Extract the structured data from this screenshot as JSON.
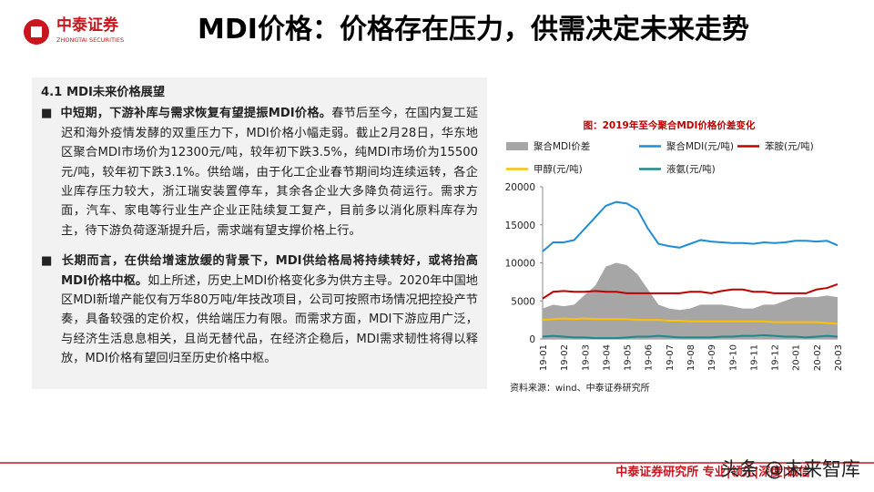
{
  "header": {
    "logo_cn": "中泰证券",
    "logo_en": "ZHONGTAI SECURITIES",
    "title": "MDI价格：价格存在压力，供需决定未来走势"
  },
  "section": {
    "heading": "4.1 MDI未来价格展望",
    "bullets": [
      {
        "bold": "中短期，下游补库与需求恢复有望提振MDI价格。",
        "text": "春节后至今，在国内复工延迟和海外疫情发酵的双重压力下，MDI价格小幅走弱。截止2月28日，华东地区聚合MDI市场价为12300元/吨，较年初下跌3.5%，纯MDI市场价为15500元/吨，较年初下跌3.1%。供给端，由于化工企业春节期间均连续运转，各企业库存压力较大，浙江瑞安装置停车，其余各企业大多降负荷运行。需求方面，汽车、家电等行业生产企业正陆续复工复产，目前多以消化原料库存为主，待下游负荷逐渐提升后，需求端有望支撑价格上行。"
      },
      {
        "bold": "长期而言，在供给增速放缓的背景下，MDI供给格局将持续转好，或将抬高MDI价格中枢。",
        "text": "如上所述，历史上MDI价格变化多为供方主导。2020年中国地区MDI新增产能仅有万华80万吨/年技改项目，公司可按照市场情况把控投产节奏，具备较强的定价权，供给端压力有限。而需求方面，MDI下游应用广泛，与经济生活息息相关，且尚无替代品，在经济企稳后，MDI需求韧性将得以释放，MDI价格有望回归至历史价格中枢。"
      }
    ]
  },
  "chart_data": {
    "type": "line",
    "title": "图：2019年至今聚合MDI价格价差变化",
    "source": "资料来源：wind、中泰证券研究所",
    "categories": [
      "19-01",
      null,
      "19-02",
      null,
      "19-03",
      null,
      "19-04",
      null,
      "19-05",
      null,
      "19-06",
      null,
      "19-07",
      null,
      "19-08",
      null,
      "19-09",
      null,
      "19-10",
      null,
      "19-11",
      null,
      "19-12",
      null,
      "20-01",
      null,
      "20-02",
      null,
      "20-03"
    ],
    "series": [
      {
        "name": "聚合MDI价差",
        "color": "#a6a6a6",
        "kind": "area",
        "values": [
          4000,
          4500,
          4300,
          4500,
          5800,
          7000,
          9500,
          10000,
          9700,
          8500,
          6500,
          4500,
          4000,
          3800,
          4000,
          4500,
          4500,
          4500,
          4300,
          4000,
          4000,
          4500,
          4500,
          5000,
          5500,
          5500,
          5500,
          5700,
          5500
        ]
      },
      {
        "name": "聚合MDI(元/吨)",
        "color": "#1f8dd6",
        "values": [
          11500,
          12700,
          12700,
          13000,
          14500,
          16000,
          17500,
          18000,
          17800,
          17000,
          14500,
          12500,
          12200,
          12000,
          12500,
          13000,
          12800,
          12700,
          12600,
          12600,
          12500,
          12700,
          12600,
          12700,
          12900,
          12900,
          12800,
          12900,
          12300
        ]
      },
      {
        "name": "苯胺(元/吨)",
        "color": "#c00000",
        "values": [
          5300,
          6200,
          6300,
          6200,
          6200,
          6300,
          6200,
          6200,
          6000,
          6000,
          6000,
          6000,
          6000,
          6000,
          6200,
          6200,
          6000,
          6300,
          6500,
          6500,
          6200,
          6200,
          6000,
          6000,
          6000,
          6000,
          6500,
          6700,
          7200
        ]
      },
      {
        "name": "甲醇(元/吨)",
        "color": "#ffc000",
        "values": [
          2500,
          2600,
          2700,
          2600,
          2700,
          2600,
          2600,
          2600,
          2600,
          2500,
          2500,
          2500,
          2400,
          2400,
          2300,
          2300,
          2300,
          2300,
          2300,
          2300,
          2300,
          2300,
          2200,
          2200,
          2200,
          2200,
          2200,
          2100,
          2000
        ]
      },
      {
        "name": "液氨(元/吨)",
        "color": "#1a8a8a",
        "values": [
          300,
          400,
          300,
          200,
          200,
          100,
          100,
          100,
          200,
          300,
          300,
          400,
          300,
          200,
          200,
          200,
          200,
          300,
          300,
          400,
          400,
          500,
          400,
          300,
          300,
          200,
          300,
          400,
          300
        ]
      }
    ],
    "ylim": [
      0,
      20000
    ],
    "yticks": [
      0,
      5000,
      10000,
      15000,
      20000
    ]
  },
  "footer": {
    "text": "中泰证券研究所 专业|领先|深度|诚信",
    "watermark": "头条 @未来智库"
  }
}
